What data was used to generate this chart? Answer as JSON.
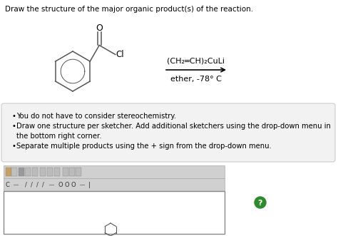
{
  "title": "Draw the structure of the major organic product(s) of the reaction.",
  "reagent_line1": "(CH₂═CH)₂CuLi",
  "reagent_line2": "ether, -78° C",
  "bullet1": "You do not have to consider stereochemistry.",
  "bullet2a": "Draw one structure per sketcher. Add additional sketchers using the drop-down menu in",
  "bullet2b": "the bottom right corner.",
  "bullet3": "Separate multiple products using the + sign from the drop-down menu.",
  "bg_color": "#ffffff",
  "box_bg": "#f2f2f2",
  "box_border": "#cccccc",
  "sketcher_bg": "#ffffff",
  "sketcher_border": "#888888",
  "toolbar_bg": "#d0d0d0",
  "toolbar_border": "#aaaaaa"
}
